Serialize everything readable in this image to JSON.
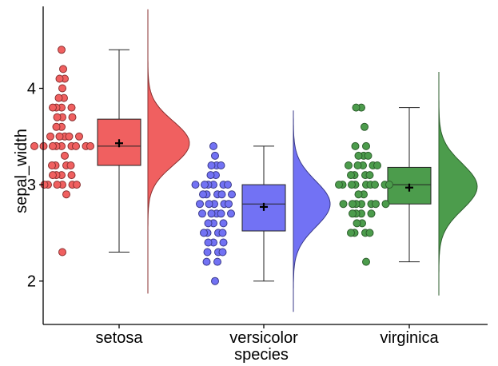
{
  "chart_data": {
    "type": "raincloud",
    "title": "",
    "xlabel": "species",
    "ylabel": "sepal_width",
    "ylim": [
      1.55,
      4.85
    ],
    "yticks": [
      2,
      3,
      4
    ],
    "grid": false,
    "legend": "none",
    "categories": [
      "setosa",
      "versicolor",
      "virginica"
    ],
    "colors": {
      "setosa": "#f06060",
      "versicolor": "#7272f4",
      "virginica": "#4c9c4c",
      "setosa_edge": "#8a3030",
      "versicolor_edge": "#3a3a8a",
      "virginica_edge": "#2d5e2d",
      "axis": "#000000"
    },
    "series": [
      {
        "name": "setosa",
        "box": {
          "whisker_low": 2.3,
          "q1": 3.2,
          "median": 3.4,
          "q3": 3.68,
          "whisker_high": 4.4,
          "mean": 3.43
        },
        "density_range": [
          1.87,
          4.82
        ],
        "density_mean": 3.43,
        "density_sd": 0.23,
        "points": [
          4.4,
          4.2,
          4.1,
          4.1,
          4.0,
          3.9,
          3.9,
          3.8,
          3.8,
          3.8,
          3.8,
          3.7,
          3.7,
          3.7,
          3.6,
          3.6,
          3.5,
          3.5,
          3.5,
          3.5,
          3.5,
          3.4,
          3.4,
          3.4,
          3.4,
          3.4,
          3.4,
          3.4,
          3.4,
          3.4,
          3.3,
          3.2,
          3.2,
          3.2,
          3.2,
          3.1,
          3.1,
          3.1,
          3.1,
          3.0,
          3.0,
          3.0,
          3.0,
          3.0,
          3.0,
          2.9,
          2.3
        ]
      },
      {
        "name": "versicolor",
        "box": {
          "whisker_low": 2.0,
          "q1": 2.52,
          "median": 2.8,
          "q3": 3.0,
          "whisker_high": 3.4,
          "mean": 2.77
        },
        "density_range": [
          1.68,
          3.77
        ],
        "density_mean": 2.8,
        "density_sd": 0.24,
        "points": [
          3.4,
          3.3,
          3.2,
          3.2,
          3.2,
          3.1,
          3.1,
          3.0,
          3.0,
          3.0,
          3.0,
          3.0,
          3.0,
          2.9,
          2.9,
          2.9,
          2.9,
          2.9,
          2.8,
          2.8,
          2.8,
          2.8,
          2.8,
          2.7,
          2.7,
          2.7,
          2.7,
          2.7,
          2.6,
          2.6,
          2.6,
          2.5,
          2.5,
          2.5,
          2.5,
          2.4,
          2.4,
          2.4,
          2.3,
          2.3,
          2.3,
          2.2,
          2.2,
          2.0
        ]
      },
      {
        "name": "virginica",
        "box": {
          "whisker_low": 2.2,
          "q1": 2.8,
          "median": 3.0,
          "q3": 3.18,
          "whisker_high": 3.8,
          "mean": 2.97
        },
        "density_range": [
          1.85,
          4.17
        ],
        "density_mean": 2.98,
        "density_sd": 0.24,
        "points": [
          3.8,
          3.8,
          3.6,
          3.4,
          3.4,
          3.3,
          3.3,
          3.3,
          3.2,
          3.2,
          3.2,
          3.2,
          3.2,
          3.1,
          3.1,
          3.1,
          3.1,
          3.0,
          3.0,
          3.0,
          3.0,
          3.0,
          3.0,
          3.0,
          3.0,
          3.0,
          2.9,
          2.9,
          2.8,
          2.8,
          2.8,
          2.8,
          2.8,
          2.8,
          2.8,
          2.7,
          2.7,
          2.7,
          2.7,
          2.6,
          2.6,
          2.5,
          2.5,
          2.5,
          2.5,
          2.2
        ]
      }
    ]
  }
}
